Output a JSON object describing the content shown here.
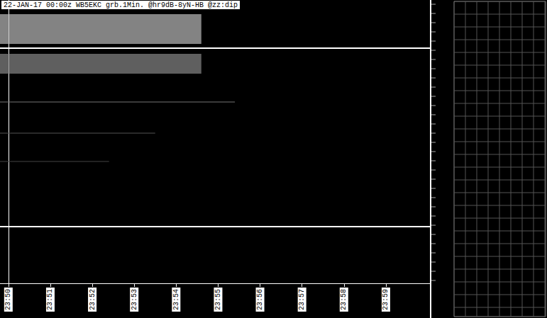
{
  "chart_data": {
    "type": "spectrogram",
    "title": "22-JAN-17 00:00z WB5EKC grb.1Min. @hr9dB-8yN-HB @zz:dip",
    "xlim": [
      -0.2,
      10.05
    ],
    "xticks": [
      {
        "value": 0,
        "label": "23:50"
      },
      {
        "value": 1,
        "label": "23:51"
      },
      {
        "value": 2,
        "label": "23:52"
      },
      {
        "value": 3,
        "label": "23:53"
      },
      {
        "value": 4,
        "label": "23:54"
      },
      {
        "value": 5,
        "label": "23:55"
      },
      {
        "value": 6,
        "label": "23:56"
      },
      {
        "value": 7,
        "label": "23:57"
      },
      {
        "value": 8,
        "label": "23:58"
      },
      {
        "value": 9,
        "label": "23:59"
      }
    ],
    "ylim": [
      0,
      100
    ],
    "tick_labels": "x",
    "grid": false,
    "signals": [
      {
        "x": [
          -0.2,
          10.05
        ],
        "y": 83,
        "color": "#ffffff"
      },
      {
        "x": [
          -0.2,
          10.05
        ],
        "y": 20,
        "color": "#ffffff"
      },
      {
        "x": [
          -0.2,
          5.4
        ],
        "y": 64,
        "color": "#777777"
      },
      {
        "x": [
          -0.2,
          3.5
        ],
        "y": 53,
        "color": "#555555"
      },
      {
        "x": [
          -0.2,
          2.4
        ],
        "y": 43,
        "color": "#444444"
      }
    ],
    "regions": [
      {
        "x": [
          -0.2,
          4.6
        ],
        "y": [
          84.5,
          95
        ],
        "color": "#bbbbbb"
      },
      {
        "x": [
          -0.2,
          4.6
        ],
        "y": [
          74,
          81
        ],
        "color": "#888888"
      }
    ]
  }
}
